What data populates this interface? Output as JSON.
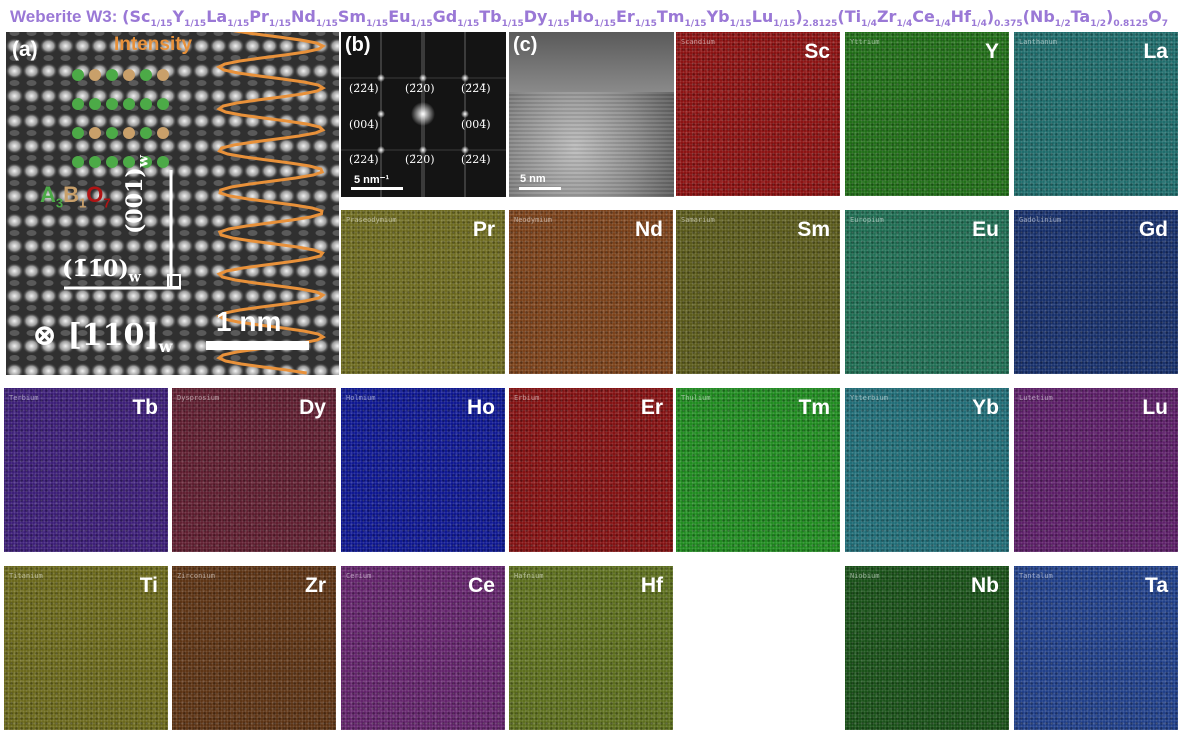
{
  "title": {
    "prefix": "Weberite W3:",
    "formula_parts": [
      {
        "t": "(Sc"
      },
      {
        "s": "1/15"
      },
      {
        "t": "Y"
      },
      {
        "s": "1/15"
      },
      {
        "t": "La"
      },
      {
        "s": "1/15"
      },
      {
        "t": "Pr"
      },
      {
        "s": "1/15"
      },
      {
        "t": "Nd"
      },
      {
        "s": "1/15"
      },
      {
        "t": "Sm"
      },
      {
        "s": "1/15"
      },
      {
        "t": "Eu"
      },
      {
        "s": "1/15"
      },
      {
        "t": "Gd"
      },
      {
        "s": "1/15"
      },
      {
        "t": "Tb"
      },
      {
        "s": "1/15"
      },
      {
        "t": "Dy"
      },
      {
        "s": "1/15"
      },
      {
        "t": "Ho"
      },
      {
        "s": "1/15"
      },
      {
        "t": "Er"
      },
      {
        "s": "1/15"
      },
      {
        "t": "Tm"
      },
      {
        "s": "1/15"
      },
      {
        "t": "Yb"
      },
      {
        "s": "1/15"
      },
      {
        "t": "Lu"
      },
      {
        "s": "1/15"
      },
      {
        "t": ")"
      },
      {
        "s": "2.8125"
      },
      {
        "t": "(Ti"
      },
      {
        "s": "1/4"
      },
      {
        "t": "Zr"
      },
      {
        "s": "1/4"
      },
      {
        "t": "Ce"
      },
      {
        "s": "1/4"
      },
      {
        "t": "Hf"
      },
      {
        "s": "1/4"
      },
      {
        "t": ")"
      },
      {
        "s": "0.375"
      },
      {
        "t": "(Nb"
      },
      {
        "s": "1/2"
      },
      {
        "t": "Ta"
      },
      {
        "s": "1/2"
      },
      {
        "t": ")"
      },
      {
        "s": "0.8125"
      },
      {
        "t": "O"
      },
      {
        "s": "7"
      }
    ]
  },
  "panel_a": {
    "label": "(a)",
    "intensity_label": "Intensity",
    "structure": {
      "A": "A",
      "a_sub": "3",
      "B": "B",
      "b_sub": "1",
      "O": "O",
      "o_sub": "7"
    },
    "dir_vertical": "(001)",
    "dir_horizontal": "(1̄1̄0)",
    "zone_axis": "[110]",
    "subscript_w": "w",
    "zone_symbol": "⊗",
    "scale": "1 nm",
    "colors": {
      "intensity": "#e8913a",
      "green_atoms": "#4caa47",
      "orange_atoms": "#c9a06a"
    }
  },
  "panel_b": {
    "label": "(b)",
    "spots": {
      "tl": "(2̄2̄4)",
      "tc": "(2̄2̄0)",
      "tr": "(2̄2̄4̄)",
      "ml": "(004)",
      "mr": "(004̄)",
      "bl": "(2̄24)",
      "bc": "(2̄20)",
      "br": "(2̄24)"
    },
    "scale": "5 nm⁻¹"
  },
  "panel_c": {
    "label": "(c)",
    "scale": "5 nm"
  },
  "maps": [
    {
      "sym": "Sc",
      "name": "Scandium",
      "color": "#8b1010"
    },
    {
      "sym": "Y",
      "name": "Yttrium",
      "color": "#1f6d16"
    },
    {
      "sym": "La",
      "name": "Lanthanum",
      "color": "#1d6b6a"
    },
    {
      "sym": "Pr",
      "name": "Praseodymium",
      "color": "#6d6a1e"
    },
    {
      "sym": "Nd",
      "name": "Neodymium",
      "color": "#7a4018"
    },
    {
      "sym": "Sm",
      "name": "Samarium",
      "color": "#5a5a1a"
    },
    {
      "sym": "Eu",
      "name": "Europium",
      "color": "#1e6d52"
    },
    {
      "sym": "Gd",
      "name": "Gadolinium",
      "color": "#152e6a"
    },
    {
      "sym": "Tb",
      "name": "Terbium",
      "color": "#3a1c76"
    },
    {
      "sym": "Dy",
      "name": "Dysprosium",
      "color": "#5e1c2e"
    },
    {
      "sym": "Ho",
      "name": "Holmium",
      "color": "#0c1590"
    },
    {
      "sym": "Er",
      "name": "Erbium",
      "color": "#820f10"
    },
    {
      "sym": "Tm",
      "name": "Thulium",
      "color": "#1e8a1e"
    },
    {
      "sym": "Yb",
      "name": "Ytterbium",
      "color": "#1f6c76"
    },
    {
      "sym": "Lu",
      "name": "Lutetium",
      "color": "#5a1c66"
    },
    {
      "sym": "Ti",
      "name": "Titanium",
      "color": "#6a681a"
    },
    {
      "sym": "Zr",
      "name": "Zirconium",
      "color": "#5c3212"
    },
    {
      "sym": "Ce",
      "name": "Cerium",
      "color": "#62226a"
    },
    {
      "sym": "Hf",
      "name": "Hafnium",
      "color": "#5c6e1c"
    },
    {
      "sym": "Nb",
      "name": "Niobium",
      "color": "#174f16"
    },
    {
      "sym": "Ta",
      "name": "Tantalum",
      "color": "#1f3e88"
    }
  ]
}
